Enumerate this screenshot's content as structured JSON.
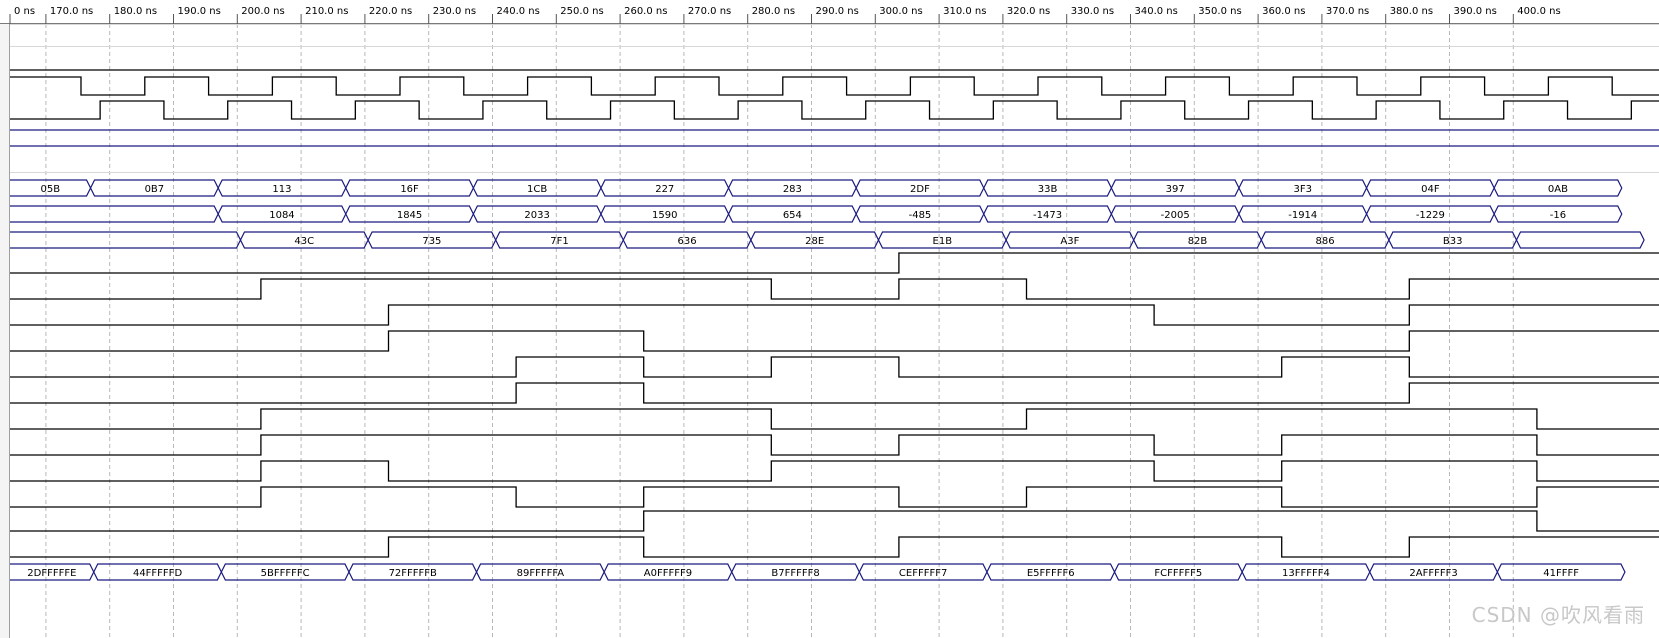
{
  "ruler": {
    "labels": [
      "0 ns",
      "170.0 ns",
      "180.0 ns",
      "190.0 ns",
      "200.0 ns",
      "210.0 ns",
      "220.0 ns",
      "230.0 ns",
      "240.0 ns",
      "250.0 ns",
      "260.0 ns",
      "270.0 ns",
      "280.0 ns",
      "290.0 ns",
      "300.0 ns",
      "310.0 ns",
      "320.0 ns",
      "330.0 ns",
      "340.0 ns",
      "350.0 ns",
      "360.0 ns",
      "370.0 ns",
      "380.0 ns",
      "390.0 ns",
      "400.0 ns"
    ]
  },
  "colors": {
    "wave": "#000000",
    "bus": "#1a1a80",
    "flat": "#1a1a80",
    "grid": "#b8b8b8",
    "text": "#000000"
  },
  "watermark": "CSDN @吹风看雨",
  "signals": [
    {
      "type": "flat",
      "level": "high"
    },
    {
      "type": "clock",
      "phase": 0
    },
    {
      "type": "clock",
      "phase": 1
    },
    {
      "type": "flat",
      "level": "bus"
    },
    {
      "type": "flat",
      "level": "bus"
    },
    {
      "type": "flat",
      "level": "none"
    },
    {
      "type": "bus",
      "values": [
        "05B",
        "0B7",
        "113",
        "16F",
        "1CB",
        "227",
        "283",
        "2DF",
        "33B",
        "397",
        "3F3",
        "04F",
        "0AB"
      ]
    },
    {
      "type": "bus",
      "values": [
        "",
        "1084",
        "1845",
        "2033",
        "1590",
        "654",
        "-485",
        "-1473",
        "-2005",
        "-1914",
        "-1229",
        "-16"
      ]
    },
    {
      "type": "bus",
      "values": [
        "",
        "43C",
        "735",
        "7F1",
        "636",
        "28E",
        "E1B",
        "A3F",
        "82B",
        "886",
        "B33",
        ""
      ]
    },
    {
      "type": "logic",
      "init": 0,
      "edges": [
        300
      ]
    },
    {
      "type": "logic",
      "init": 0,
      "edges": [
        200,
        280,
        300,
        320,
        380
      ]
    },
    {
      "type": "logic",
      "init": 0,
      "edges": [
        220,
        340,
        380
      ]
    },
    {
      "type": "logic",
      "init": 0,
      "edges": [
        220,
        260,
        380
      ]
    },
    {
      "type": "logic",
      "init": 0,
      "edges": [
        240,
        260,
        280,
        300,
        360,
        380
      ]
    },
    {
      "type": "logic",
      "init": 0,
      "edges": [
        240,
        260,
        380
      ]
    },
    {
      "type": "logic",
      "init": 0,
      "edges": [
        200,
        280,
        320,
        400
      ]
    },
    {
      "type": "logic",
      "init": 0,
      "edges": [
        200,
        280,
        300,
        340,
        360,
        400
      ]
    },
    {
      "type": "logic",
      "init": 0,
      "edges": [
        200,
        220,
        280,
        340,
        360,
        400
      ]
    },
    {
      "type": "logic",
      "init": 0,
      "edges": [
        200,
        240,
        260,
        300,
        320,
        360,
        400
      ]
    },
    {
      "type": "logic",
      "init": 0,
      "edges": [
        260,
        400
      ]
    },
    {
      "type": "logic",
      "init": 0,
      "edges": [
        220,
        260,
        300,
        360,
        380
      ]
    },
    {
      "type": "bus",
      "values": [
        "2DFFFFFE",
        "44FFFFFD",
        "5BFFFFFC",
        "72FFFFFB",
        "89FFFFFA",
        "A0FFFFF9",
        "B7FFFFF8",
        "CEFFFFF7",
        "E5FFFFF6",
        "FCFFFFF5",
        "13FFFFF4",
        "2AFFFFF3",
        "41FFFF"
      ]
    }
  ]
}
